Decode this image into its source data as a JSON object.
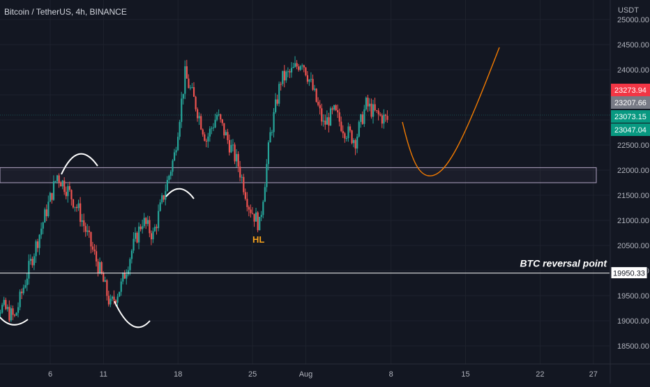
{
  "header": {
    "symbol": "Bitcoin / TetherUS, 4h, BINANCE"
  },
  "price_axis": {
    "unit": "USDT",
    "ticks": [
      18500,
      19000,
      19500,
      20000,
      20500,
      21000,
      21500,
      22000,
      22500,
      23000,
      23500,
      24000,
      24500,
      25000
    ],
    "tick_labels": [
      "18500.00",
      "19000.00",
      "19500.00",
      "20000.00",
      "20500.00",
      "21000.00",
      "21500.00",
      "22000.00",
      "22500.00",
      "23000.00",
      "23500.00",
      "24000.00",
      "24500.00",
      "25000.00"
    ]
  },
  "time_axis": {
    "labels": [
      {
        "day": 6,
        "text": "6"
      },
      {
        "day": 11,
        "text": "11"
      },
      {
        "day": 18,
        "text": "18"
      },
      {
        "day": 25,
        "text": "25"
      },
      {
        "day": 30,
        "text": "Aug"
      },
      {
        "day": 38,
        "text": "8"
      },
      {
        "day": 45,
        "text": "15"
      },
      {
        "day": 52,
        "text": "22"
      },
      {
        "day": 57,
        "text": "27"
      }
    ]
  },
  "price_badges": [
    {
      "value": "23273.94",
      "color": "#f23645"
    },
    {
      "value": "23207.66",
      "color": "#787b86"
    },
    {
      "value": "23073.15",
      "color": "#089981"
    },
    {
      "value": "23047.04",
      "color": "#089981"
    }
  ],
  "annotations": {
    "reversal_label": "BTC reversal point",
    "reversal_price": "19950.33",
    "hl_label": "HL"
  },
  "colors": {
    "up": "#26a69a",
    "down": "#ef5350",
    "projection": "#f57c00",
    "zone_border": "#b2a4c4",
    "background": "#131722"
  },
  "chart_data": {
    "type": "candlestick",
    "title": "Bitcoin / TetherUS, 4h, BINANCE",
    "x_unit": "days from chart start (Jul 2022, 4h candles)",
    "ylabel": "USDT",
    "ylim": [
      18250,
      25150
    ],
    "price_series": {
      "name": "BTCUSDT",
      "x": [
        0,
        1,
        2,
        3,
        4,
        5,
        6,
        7,
        8,
        9,
        10,
        11,
        12,
        13,
        14,
        15,
        16,
        17,
        18,
        19,
        20,
        21,
        22,
        23,
        24,
        25,
        26,
        27,
        28,
        29,
        30,
        31,
        32,
        33,
        34,
        35,
        36,
        37,
        38
      ],
      "close": [
        19700,
        19300,
        19250,
        19050,
        19800,
        20500,
        21200,
        21900,
        21600,
        21200,
        20600,
        20000,
        19300,
        19700,
        20400,
        21000,
        20700,
        21500,
        22300,
        23900,
        23300,
        22600,
        23100,
        22600,
        22100,
        21300,
        20900,
        22700,
        23800,
        23950,
        24200,
        23600,
        22900,
        23150,
        22800,
        22600,
        23300,
        23100,
        23000
      ]
    },
    "horizontal_levels": [
      {
        "label": "BTC reversal point",
        "value": 19950.33
      }
    ],
    "zones": [
      {
        "from": 21750,
        "to": 22050
      }
    ],
    "projection_path": {
      "x": [
        38,
        40,
        41.6,
        44,
        47
      ],
      "y": [
        23050,
        22050,
        21880,
        22350,
        24450
      ]
    },
    "text_annotations": [
      {
        "text": "HL",
        "x": 25,
        "y": 20800
      }
    ],
    "last_prices": [
      23273.94,
      23207.66,
      23073.15,
      23047.04
    ]
  }
}
